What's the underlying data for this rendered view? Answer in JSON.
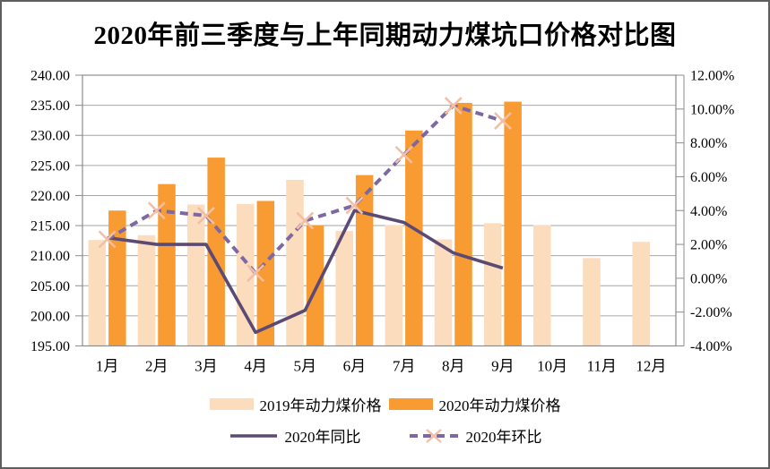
{
  "title": "2020年前三季度与上年同期动力煤坑口价格对比图",
  "colors": {
    "bar_2019": "#FBDCBC",
    "bar_2020": "#F89B32",
    "line_solid": "#5B4A73",
    "line_dashed": "#7E68A3",
    "marker_x": "#F2BFA4",
    "gridline": "#A6A6A6",
    "plot_border": "#8C8C8C",
    "text": "#000000"
  },
  "chart_data": {
    "type": "combo-bar-line",
    "title": "2020年前三季度与上年同期动力煤坑口价格对比图",
    "categories": [
      "1月",
      "2月",
      "3月",
      "4月",
      "5月",
      "6月",
      "7月",
      "8月",
      "9月",
      "10月",
      "11月",
      "12月"
    ],
    "grid": true,
    "legend_position": "bottom",
    "left_axis": {
      "min": 195,
      "max": 240,
      "step": 5,
      "tick_labels": [
        "240.00",
        "235.00",
        "230.00",
        "225.00",
        "220.00",
        "215.00",
        "210.00",
        "205.00",
        "200.00",
        "195.00"
      ]
    },
    "right_axis": {
      "min": -4,
      "max": 12,
      "step": 2,
      "tick_labels": [
        "12.00%",
        "10.00%",
        "8.00%",
        "6.00%",
        "4.00%",
        "2.00%",
        "0.00%",
        "-2.00%",
        "-4.00%"
      ]
    },
    "series": [
      {
        "name": "2019年动力煤价格",
        "type": "bar",
        "axis": "left",
        "color": "#FBDCBC",
        "values": [
          212.6,
          213.4,
          218.5,
          218.6,
          222.6,
          214.1,
          215.1,
          212.7,
          215.4,
          215.1,
          209.6,
          212.3
        ]
      },
      {
        "name": "2020年动力煤价格",
        "type": "bar",
        "axis": "left",
        "color": "#F89B32",
        "values": [
          217.5,
          221.9,
          226.3,
          219.1,
          215.0,
          223.4,
          230.8,
          235.4,
          235.6,
          null,
          null,
          null
        ]
      },
      {
        "name": "2020年同比",
        "type": "line",
        "style": "solid",
        "axis": "right",
        "color": "#5B4A73",
        "values": [
          2.4,
          2.0,
          2.0,
          -3.2,
          -1.9,
          4.0,
          3.3,
          1.5,
          0.6,
          null,
          null,
          null
        ]
      },
      {
        "name": "2020年环比",
        "type": "line",
        "style": "dashed",
        "marker": "x",
        "axis": "right",
        "color": "#7E68A3",
        "marker_color": "#F2BFA4",
        "values": [
          2.3,
          4.0,
          3.7,
          0.3,
          3.4,
          4.3,
          7.3,
          10.2,
          9.3,
          null,
          null,
          null
        ]
      }
    ]
  }
}
